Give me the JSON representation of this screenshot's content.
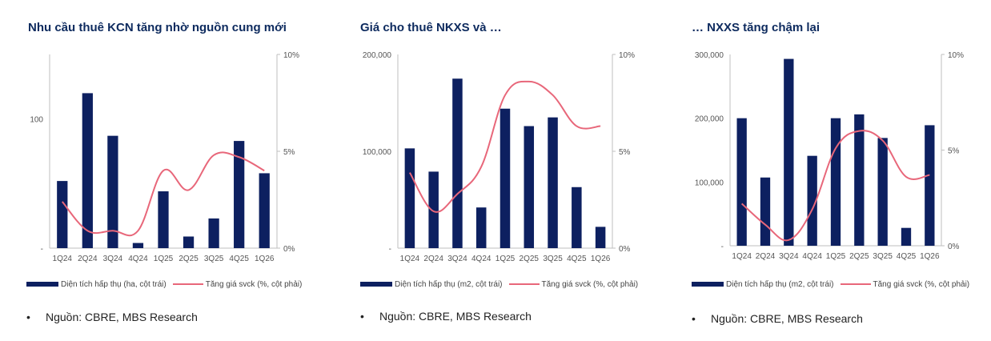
{
  "panels": [
    {
      "title": "Nhu cầu thuê KCN tăng nhờ nguồn cung mới",
      "legend": {
        "bar": "Diện tích hấp thụ (ha, cột trái)",
        "line": "Tăng giá svck (%, cột phải)"
      },
      "source": {
        "bullet": "•",
        "text": "Nguồn: CBRE, MBS Research"
      }
    },
    {
      "title": "Giá cho thuê NKXS và …",
      "legend": {
        "bar": "Diện tích hấp thụ (m2, cột trái)",
        "line": "Tăng giá svck (%, cột phải)"
      },
      "source": {
        "bullet": "•",
        "text": "Nguồn: CBRE, MBS Research"
      }
    },
    {
      "title": "… NXXS tăng chậm lại",
      "legend": {
        "bar": "Diện tích hấp thụ (m2, cột trái)",
        "line": "Tăng giá svck (%, cột phải)"
      },
      "source": {
        "bullet": "•",
        "text": "Nguồn: CBRE, MBS Research"
      }
    }
  ],
  "colors": {
    "bar": "#0d2060",
    "line": "#e8677a",
    "axis": "#bfbfbf"
  },
  "chart_data": [
    {
      "type": "bar+line",
      "categories": [
        "1Q24",
        "2Q24",
        "3Q24",
        "4Q24",
        "1Q25",
        "2Q25",
        "3Q25",
        "4Q25",
        "1Q26"
      ],
      "series": [
        {
          "name": "Diện tích hấp thụ (ha, cột trái)",
          "type": "bar",
          "axis": "left",
          "values": [
            52,
            120,
            87,
            4,
            44,
            9,
            23,
            83,
            58
          ]
        },
        {
          "name": "Tăng giá svck (%, cột phải)",
          "type": "line",
          "axis": "right",
          "values": [
            2.4,
            0.9,
            0.9,
            0.9,
            4.0,
            3.0,
            4.8,
            4.7,
            4.0
          ]
        }
      ],
      "left_axis": {
        "ticks": [
          "-",
          "100"
        ],
        "tick_values": [
          0,
          100
        ],
        "ylim": [
          0,
          150
        ]
      },
      "right_axis": {
        "ticks": [
          "0%",
          "5%",
          "10%"
        ],
        "tick_values": [
          0,
          5,
          10
        ],
        "ylim": [
          0,
          10
        ]
      },
      "grid": false,
      "legend_position": "bottom"
    },
    {
      "type": "bar+line",
      "categories": [
        "1Q24",
        "2Q24",
        "3Q24",
        "4Q24",
        "1Q25",
        "2Q25",
        "3Q25",
        "4Q25",
        "1Q26"
      ],
      "series": [
        {
          "name": "Diện tích hấp thụ (m2, cột trái)",
          "type": "bar",
          "axis": "left",
          "values": [
            103000,
            79000,
            175000,
            42000,
            144000,
            126000,
            135000,
            63000,
            22000
          ]
        },
        {
          "name": "Tăng giá svck (%, cột phải)",
          "type": "line",
          "axis": "right",
          "values": [
            3.9,
            1.9,
            2.8,
            4.2,
            7.9,
            8.6,
            7.9,
            6.3,
            6.3
          ]
        }
      ],
      "left_axis": {
        "ticks": [
          "-",
          "100,000",
          "200,000"
        ],
        "tick_values": [
          0,
          100000,
          200000
        ],
        "ylim": [
          0,
          200000
        ]
      },
      "right_axis": {
        "ticks": [
          "0%",
          "5%",
          "10%"
        ],
        "tick_values": [
          0,
          5,
          10
        ],
        "ylim": [
          0,
          10
        ]
      },
      "grid": false,
      "legend_position": "bottom"
    },
    {
      "type": "bar+line",
      "categories": [
        "1Q24",
        "2Q24",
        "3Q24",
        "4Q24",
        "1Q25",
        "2Q25",
        "3Q25",
        "4Q25",
        "1Q26"
      ],
      "series": [
        {
          "name": "Diện tích hấp thụ (m2, cột trái)",
          "type": "bar",
          "axis": "left",
          "values": [
            200000,
            107000,
            293000,
            141000,
            200000,
            206000,
            169000,
            28000,
            189000
          ]
        },
        {
          "name": "Tăng giá svck (%, cột phải)",
          "type": "line",
          "axis": "right",
          "values": [
            2.2,
            1.1,
            0.3,
            1.9,
            5.1,
            6.0,
            5.5,
            3.6,
            3.7
          ]
        }
      ],
      "left_axis": {
        "ticks": [
          "-",
          "100,000",
          "200,000",
          "300,000"
        ],
        "tick_values": [
          0,
          100000,
          200000,
          300000
        ],
        "ylim": [
          0,
          300000
        ]
      },
      "right_axis": {
        "ticks": [
          "0%",
          "5%",
          "10%"
        ],
        "tick_values": [
          0,
          5,
          10
        ],
        "ylim": [
          0,
          10
        ]
      },
      "grid": false,
      "legend_position": "bottom"
    }
  ]
}
